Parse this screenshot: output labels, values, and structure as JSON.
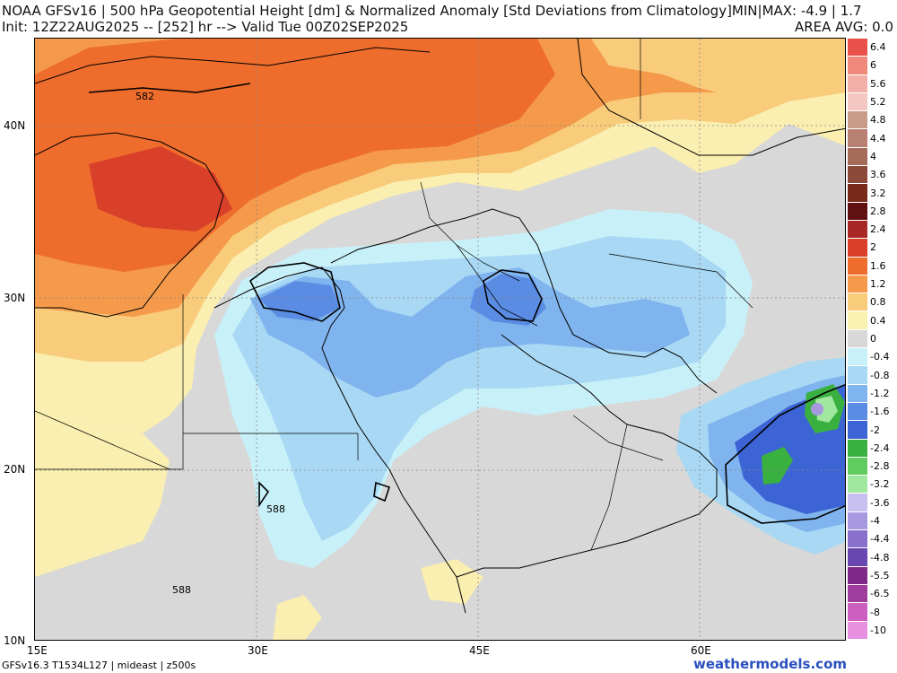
{
  "header": {
    "line1": "NOAA GFSv16 | 500 hPa Geopotential Height [dm] & Normalized Anomaly [Std Deviations from Climatology]MIN|MAX: -4.9 | 1.7",
    "line2": "Init: 12Z22AUG2025 -- [252] hr --> Valid Tue 00Z02SEP2025",
    "area_avg": "AREA AVG: 0.0"
  },
  "axes": {
    "lat_labels": [
      "40N",
      "30N",
      "20N",
      "10N"
    ],
    "lon_labels": [
      "15E",
      "30E",
      "45E",
      "60E"
    ]
  },
  "contours": {
    "label_582": "582",
    "label_588a": "588",
    "label_588b": "588"
  },
  "legend": {
    "labels": [
      "6.4",
      "6",
      "5.6",
      "5.2",
      "4.8",
      "4.4",
      "4",
      "3.6",
      "3.2",
      "2.8",
      "2.4",
      "2",
      "1.6",
      "1.2",
      "0.8",
      "0.4",
      "0",
      "-0.4",
      "-0.8",
      "-1.2",
      "-1.6",
      "-2",
      "-2.4",
      "-2.8",
      "-3.2",
      "-3.6",
      "-4",
      "-4.4",
      "-4.8",
      "-5.5",
      "-6.5",
      "-8",
      "-10"
    ],
    "colors": [
      "#e8504a",
      "#ef8a7a",
      "#f3b0a8",
      "#f3c8c0",
      "#c89a8a",
      "#b88070",
      "#a46a5a",
      "#8c4a3a",
      "#7a2a1a",
      "#601010",
      "#a82828",
      "#d8402a",
      "#ee6c2c",
      "#f49a4a",
      "#f8cc7a",
      "#faf0b0",
      "#d8d8d8",
      "#c8f0f8",
      "#a8d8f4",
      "#80b4ee",
      "#5a8ce4",
      "#3c64d4",
      "#3ab040",
      "#60cc60",
      "#a0e8a0",
      "#c8c0f0",
      "#a898e0",
      "#8870cc",
      "#6848b0",
      "#802888",
      "#a03c9c",
      "#cc60c0",
      "#e890e0"
    ]
  },
  "footer": {
    "model_info": "GFSv16.3 T1534L127 | mideast | z500s",
    "brand": "weathermodels.com"
  },
  "colors": {
    "brand": "#2a4fbf",
    "land_neutral": "#d8d8d8"
  }
}
